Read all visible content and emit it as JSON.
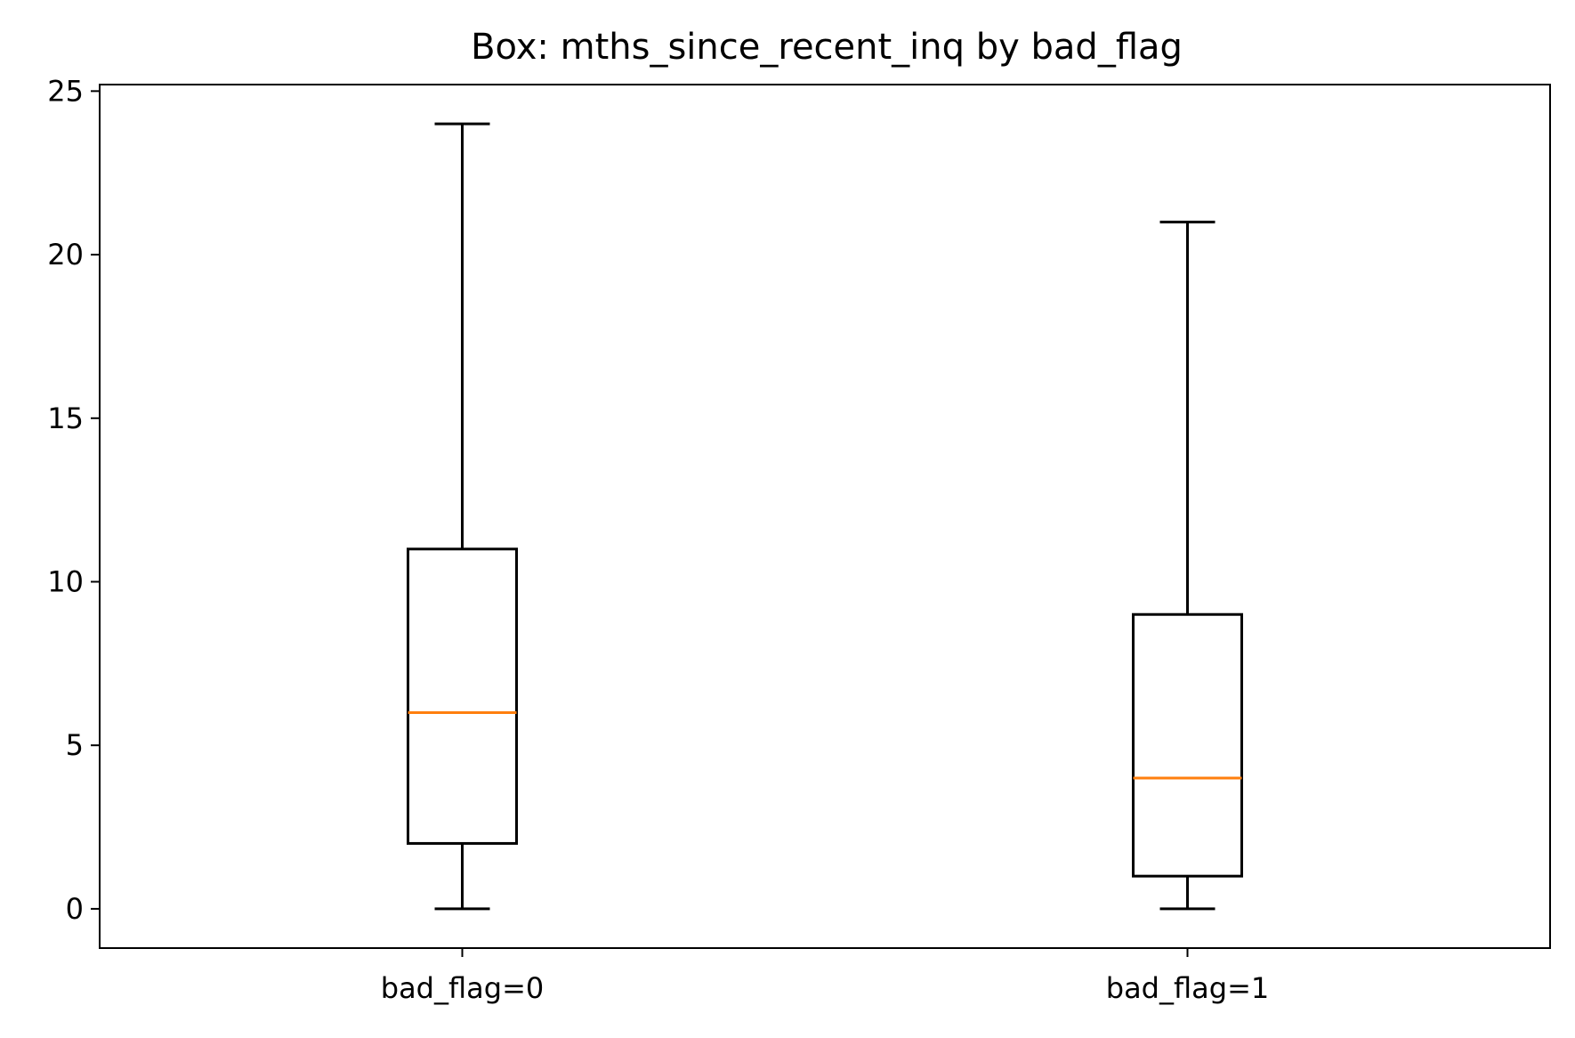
{
  "chart_data": {
    "type": "box",
    "title": "Box: mths_since_recent_inq by bad_flag",
    "xlabel": "",
    "ylabel": "",
    "ylim": [
      -1.2,
      25.2
    ],
    "yticks": [
      0,
      5,
      10,
      15,
      20,
      25
    ],
    "grid": false,
    "categories": [
      "bad_flag=0",
      "bad_flag=1"
    ],
    "boxes": [
      {
        "category": "bad_flag=0",
        "whisker_low": 0,
        "q1": 2,
        "median": 6,
        "q3": 11,
        "whisker_high": 24
      },
      {
        "category": "bad_flag=1",
        "whisker_low": 0,
        "q1": 1,
        "median": 4,
        "q3": 9,
        "whisker_high": 21
      }
    ],
    "colors": {
      "box": "#000000",
      "median": "#ff7f0e"
    }
  }
}
